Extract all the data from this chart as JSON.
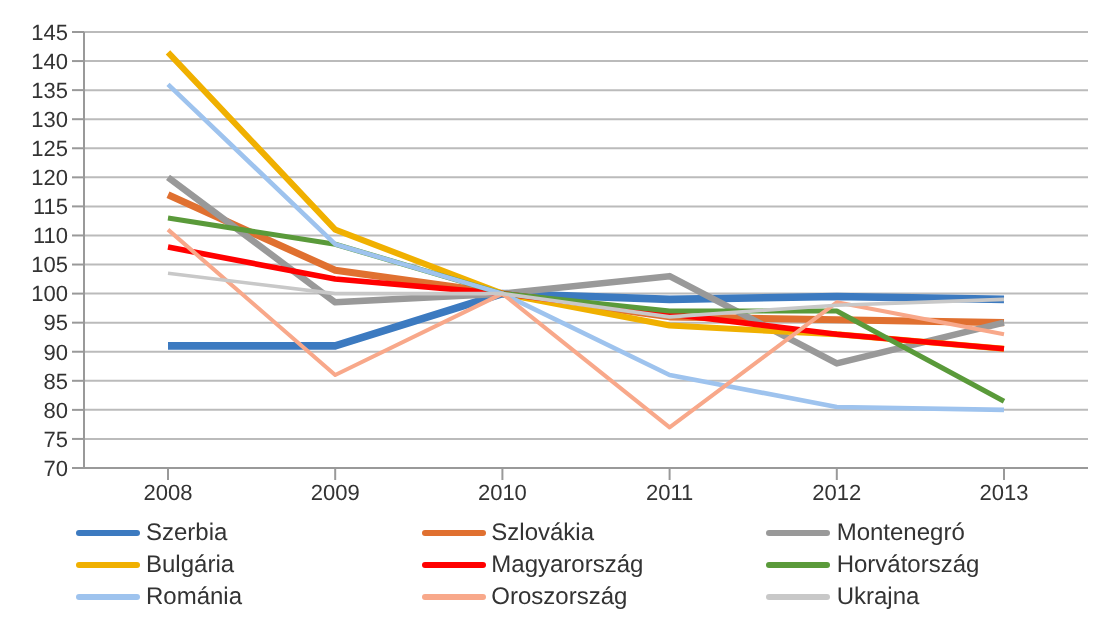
{
  "chart_data": {
    "type": "line",
    "categories": [
      "2008",
      "2009",
      "2010",
      "2011",
      "2012",
      "2013"
    ],
    "series": [
      {
        "name": "Szerbia",
        "color": "#3c7ac0",
        "values": [
          91,
          91,
          100,
          99,
          99.5,
          99
        ]
      },
      {
        "name": "Szlovákia",
        "color": "#e07030",
        "values": [
          117,
          104,
          100,
          96,
          95.5,
          95
        ]
      },
      {
        "name": "Montenegró",
        "color": "#999999",
        "values": [
          120,
          98.5,
          100,
          103,
          88,
          95
        ]
      },
      {
        "name": "Bulgária",
        "color": "#f0b000",
        "values": [
          141.5,
          111,
          100,
          94.5,
          93,
          90.5
        ]
      },
      {
        "name": "Magyarország",
        "color": "#ff0000",
        "values": [
          108,
          102.5,
          100,
          96.5,
          93,
          90.5
        ]
      },
      {
        "name": "Horvátország",
        "color": "#5a9a3a",
        "values": [
          113,
          108.5,
          100,
          97,
          97,
          81.5
        ]
      },
      {
        "name": "Románia",
        "color": "#9ec3ee",
        "values": [
          136,
          108.5,
          100,
          86,
          80.5,
          80
        ]
      },
      {
        "name": "Oroszország",
        "color": "#f8a88a",
        "values": [
          111,
          86,
          100,
          77,
          98.5,
          93
        ]
      },
      {
        "name": "Ukrajna",
        "color": "#c8c8c8",
        "values": [
          103.5,
          100,
          100,
          96,
          98,
          99
        ]
      }
    ],
    "ylim": [
      70,
      145
    ],
    "yticks": [
      70,
      75,
      80,
      85,
      90,
      95,
      100,
      105,
      110,
      115,
      120,
      125,
      130,
      135,
      140,
      145
    ],
    "grid": "y",
    "legend": "bottom",
    "marker": "none",
    "line_style": "solid"
  }
}
